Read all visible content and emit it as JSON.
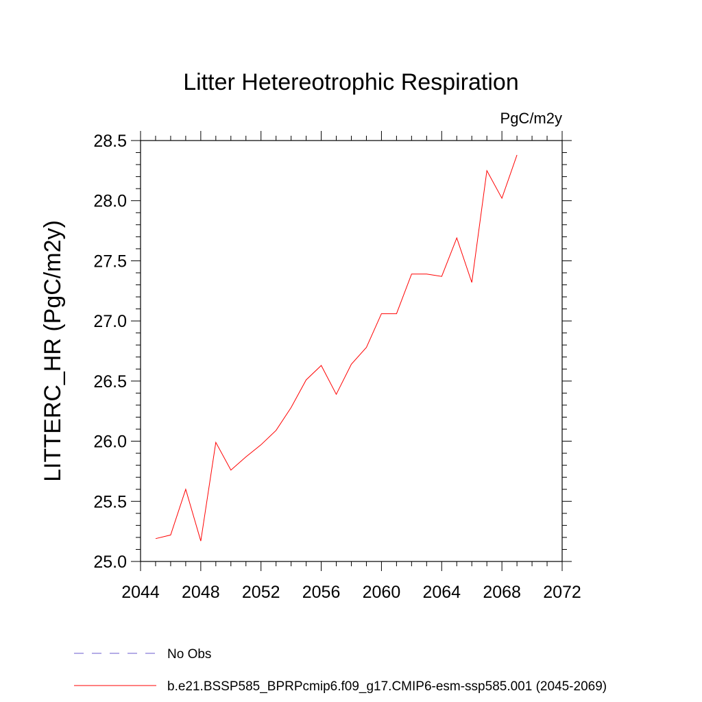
{
  "chart_data": {
    "type": "line",
    "title": "Litter Hetereotrophic Respiration",
    "units": "PgC/m2y",
    "ylabel": "LITTERC_HR  (PgC/m2y)",
    "xlabel": "",
    "xlim": [
      2044,
      2072
    ],
    "ylim": [
      25.0,
      28.5
    ],
    "x_ticks": [
      2044,
      2048,
      2052,
      2056,
      2060,
      2064,
      2068,
      2072
    ],
    "x_tick_labels": [
      "2044",
      "2048",
      "2052",
      "2056",
      "2060",
      "2064",
      "2068",
      "2072"
    ],
    "y_ticks": [
      25.0,
      25.5,
      26.0,
      26.5,
      27.0,
      27.5,
      28.0,
      28.5
    ],
    "y_tick_labels": [
      "25.0",
      "25.5",
      "26.0",
      "26.5",
      "27.0",
      "27.5",
      "28.0",
      "28.5"
    ],
    "grid": false,
    "legend_position": "bottom",
    "series": [
      {
        "name": "b.e21.BSSP585_BPRPcmip6.f09_g17.CMIP6-esm-ssp585.001 (2045-2069)",
        "color": "#ff0000",
        "style": "solid",
        "x": [
          2045,
          2046,
          2047,
          2048,
          2049,
          2050,
          2051,
          2052,
          2053,
          2054,
          2055,
          2056,
          2057,
          2058,
          2059,
          2060,
          2061,
          2062,
          2063,
          2064,
          2065,
          2066,
          2067,
          2068,
          2069
        ],
        "y": [
          25.19,
          25.22,
          25.6,
          25.17,
          25.99,
          25.76,
          25.87,
          25.97,
          26.09,
          26.28,
          26.51,
          26.63,
          26.39,
          26.64,
          26.78,
          27.06,
          27.06,
          27.39,
          27.39,
          27.37,
          27.69,
          27.32,
          28.25,
          28.02,
          28.38
        ]
      }
    ],
    "legend": [
      {
        "label": "No Obs",
        "color": "#6a5acd",
        "style": "dashed"
      },
      {
        "label": "b.e21.BSSP585_BPRPcmip6.f09_g17.CMIP6-esm-ssp585.001 (2045-2069)",
        "color": "#ff0000",
        "style": "solid"
      }
    ]
  }
}
